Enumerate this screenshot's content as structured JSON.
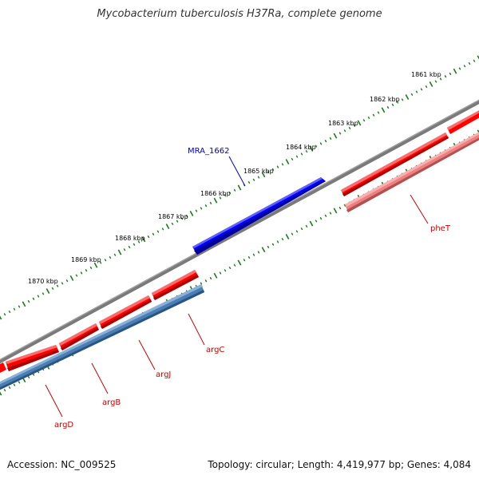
{
  "title": "Mycobacterium tuberculosis H37Ra, complete genome",
  "footer": {
    "accession": "Accession: NC_009525",
    "summary": "Topology: circular; Length: 4,419,977 bp; Genes: 4,084"
  },
  "colors": {
    "backbone": "#808080",
    "tick": "#1a7a1a",
    "forward_gene": "#ff0000",
    "reverse_gene": "#4a7fb5",
    "highlight_gene": "#0000ff",
    "rrna_like": "#f08080",
    "label_red": "#cc0000",
    "label_blue": "#0000cc"
  },
  "scale_labels": [
    "1861 kbp",
    "1862 kbp",
    "1863 kbp",
    "1864 kbp",
    "1865 kbp",
    "1866 kbp",
    "1867 kbp",
    "1868 kbp",
    "1869 kbp",
    "1870 kbp"
  ],
  "genes": [
    {
      "name": "MRA_1662",
      "color": "blue"
    },
    {
      "name": "pheT",
      "color": "red"
    },
    {
      "name": "argC",
      "color": "red"
    },
    {
      "name": "argJ",
      "color": "red"
    },
    {
      "name": "argB",
      "color": "red"
    },
    {
      "name": "argD",
      "color": "red"
    }
  ]
}
